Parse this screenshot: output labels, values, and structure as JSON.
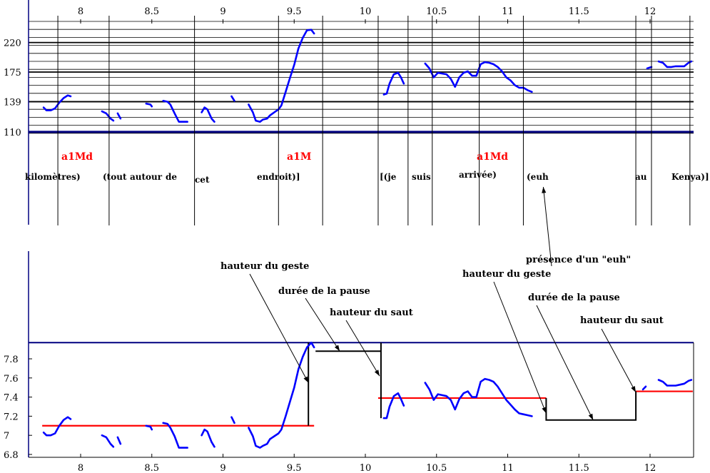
{
  "chart_data": [
    {
      "type": "line",
      "panel": "top",
      "x_ticks": [
        "8",
        "8.5",
        "9",
        "9.5",
        "10",
        "10.5",
        "11",
        "11.5",
        "12"
      ],
      "y_ticks": [
        "110",
        "139",
        "175",
        "220"
      ],
      "xlim": [
        7.73,
        12.3
      ],
      "ylim": [
        104,
        248
      ],
      "y_scale": "log",
      "grid": "horizontal",
      "series": [
        {
          "color": "#0000ff",
          "segments": [
            [
              [
                7.74,
                133
              ],
              [
                7.76,
                130
              ],
              [
                7.79,
                130
              ],
              [
                7.82,
                132
              ],
              [
                7.85,
                138
              ],
              [
                7.88,
                143
              ],
              [
                7.91,
                146
              ],
              [
                7.93,
                145
              ]
            ],
            [
              [
                8.15,
                129
              ],
              [
                8.18,
                127
              ],
              [
                8.21,
                122
              ],
              [
                8.23,
                120
              ]
            ],
            [
              [
                8.26,
                127
              ],
              [
                8.28,
                122
              ]
            ],
            [
              [
                8.46,
                137
              ],
              [
                8.49,
                136
              ],
              [
                8.5,
                134
              ]
            ],
            [
              [
                8.58,
                140
              ],
              [
                8.61,
                139
              ],
              [
                8.63,
                136
              ],
              [
                8.66,
                127
              ],
              [
                8.69,
                119
              ],
              [
                8.73,
                119
              ],
              [
                8.75,
                119
              ]
            ],
            [
              [
                8.85,
                128
              ],
              [
                8.87,
                133
              ],
              [
                8.89,
                131
              ],
              [
                8.92,
                122
              ],
              [
                8.94,
                119
              ]
            ],
            [
              [
                9.06,
                145
              ],
              [
                9.08,
                140
              ]
            ],
            [
              [
                9.18,
                136
              ],
              [
                9.21,
                128
              ],
              [
                9.23,
                120
              ],
              [
                9.26,
                119
              ],
              [
                9.28,
                121
              ],
              [
                9.31,
                122
              ],
              [
                9.33,
                125
              ],
              [
                9.36,
                128
              ],
              [
                9.39,
                131
              ],
              [
                9.41,
                135
              ],
              [
                9.44,
                150
              ],
              [
                9.47,
                167
              ],
              [
                9.5,
                185
              ],
              [
                9.53,
                210
              ],
              [
                9.56,
                228
              ],
              [
                9.59,
                242
              ],
              [
                9.62,
                243
              ],
              [
                9.64,
                236
              ]
            ],
            [
              [
                10.13,
                147
              ],
              [
                10.15,
                148
              ],
              [
                10.17,
                160
              ],
              [
                10.2,
                172
              ],
              [
                10.23,
                174
              ],
              [
                10.25,
                168
              ],
              [
                10.27,
                160
              ]
            ],
            [
              [
                10.42,
                187
              ],
              [
                10.45,
                180
              ],
              [
                10.48,
                168
              ],
              [
                10.51,
                174
              ],
              [
                10.54,
                173
              ],
              [
                10.57,
                172
              ],
              [
                10.6,
                166
              ],
              [
                10.63,
                156
              ],
              [
                10.66,
                168
              ],
              [
                10.69,
                174
              ],
              [
                10.72,
                176
              ],
              [
                10.75,
                170
              ],
              [
                10.78,
                170
              ],
              [
                10.81,
                186
              ],
              [
                10.84,
                189
              ],
              [
                10.87,
                188
              ],
              [
                10.9,
                186
              ],
              [
                10.93,
                182
              ],
              [
                10.96,
                176
              ],
              [
                10.99,
                168
              ],
              [
                11.02,
                164
              ],
              [
                11.05,
                158
              ],
              [
                11.08,
                155
              ],
              [
                11.11,
                155
              ],
              [
                11.14,
                152
              ],
              [
                11.17,
                150
              ]
            ],
            [
              [
                11.98,
                180
              ],
              [
                12.01,
                182
              ]
            ],
            [
              [
                12.06,
                190
              ],
              [
                12.09,
                188
              ],
              [
                12.12,
                182
              ],
              [
                12.15,
                182
              ],
              [
                12.18,
                183
              ],
              [
                12.21,
                183
              ],
              [
                12.24,
                183
              ],
              [
                12.27,
                188
              ],
              [
                12.29,
                190
              ]
            ]
          ]
        }
      ],
      "word_boundaries": [
        7.84,
        8.2,
        8.8,
        9.39,
        9.7,
        10.09,
        10.3,
        10.47,
        10.8,
        11.11,
        11.9,
        12.01,
        12.28
      ],
      "words": [
        "kilomètres)",
        "(tout",
        "autour",
        "de",
        "cet",
        "endroit)]",
        "[(je",
        "suis",
        "arrivée)",
        "(euh",
        "au",
        "Kenya)]"
      ],
      "markers": [
        "a1Md",
        "a1M",
        "a1Md"
      ]
    },
    {
      "type": "line",
      "panel": "bottom",
      "x_ticks": [
        "8",
        "8.5",
        "9",
        "9.5",
        "10",
        "10.5",
        "11",
        "11.5",
        "12"
      ],
      "y_ticks": [
        "6.8",
        "7",
        "7.2",
        "7.4",
        "7.6",
        "7.8"
      ],
      "xlim": [
        7.73,
        12.3
      ],
      "ylim": [
        6.77,
        8.0
      ],
      "grid": "none",
      "series": [
        {
          "color": "#0000ff",
          "segments": [
            [
              [
                7.74,
                7.03
              ],
              [
                7.76,
                7.0
              ],
              [
                7.79,
                7.0
              ],
              [
                7.82,
                7.02
              ],
              [
                7.85,
                7.1
              ],
              [
                7.88,
                7.16
              ],
              [
                7.91,
                7.19
              ],
              [
                7.93,
                7.17
              ]
            ],
            [
              [
                8.15,
                7.0
              ],
              [
                8.18,
                6.98
              ],
              [
                8.21,
                6.91
              ],
              [
                8.23,
                6.88
              ]
            ],
            [
              [
                8.26,
                6.98
              ],
              [
                8.28,
                6.91
              ]
            ],
            [
              [
                8.46,
                7.1
              ],
              [
                8.49,
                7.09
              ],
              [
                8.5,
                7.06
              ]
            ],
            [
              [
                8.58,
                7.13
              ],
              [
                8.61,
                7.12
              ],
              [
                8.63,
                7.08
              ],
              [
                8.66,
                6.99
              ],
              [
                8.69,
                6.87
              ],
              [
                8.73,
                6.87
              ],
              [
                8.75,
                6.87
              ]
            ],
            [
              [
                8.85,
                7.0
              ],
              [
                8.87,
                7.06
              ],
              [
                8.89,
                7.04
              ],
              [
                8.92,
                6.93
              ],
              [
                8.94,
                6.88
              ]
            ],
            [
              [
                9.06,
                7.19
              ],
              [
                9.08,
                7.13
              ]
            ],
            [
              [
                9.18,
                7.08
              ],
              [
                9.21,
                6.99
              ],
              [
                9.23,
                6.89
              ],
              [
                9.26,
                6.87
              ],
              [
                9.28,
                6.89
              ],
              [
                9.31,
                6.91
              ],
              [
                9.33,
                6.96
              ],
              [
                9.36,
                6.99
              ],
              [
                9.39,
                7.02
              ],
              [
                9.41,
                7.06
              ],
              [
                9.44,
                7.2
              ],
              [
                9.47,
                7.35
              ],
              [
                9.5,
                7.5
              ],
              [
                9.53,
                7.69
              ],
              [
                9.56,
                7.82
              ],
              [
                9.59,
                7.92
              ],
              [
                9.62,
                7.97
              ],
              [
                9.64,
                7.92
              ]
            ],
            [
              [
                10.13,
                7.18
              ],
              [
                10.15,
                7.18
              ],
              [
                10.17,
                7.3
              ],
              [
                10.2,
                7.41
              ],
              [
                10.23,
                7.44
              ],
              [
                10.25,
                7.38
              ],
              [
                10.27,
                7.31
              ]
            ],
            [
              [
                10.42,
                7.55
              ],
              [
                10.45,
                7.48
              ],
              [
                10.48,
                7.37
              ],
              [
                10.51,
                7.43
              ],
              [
                10.54,
                7.42
              ],
              [
                10.57,
                7.41
              ],
              [
                10.6,
                7.37
              ],
              [
                10.63,
                7.27
              ],
              [
                10.66,
                7.38
              ],
              [
                10.69,
                7.44
              ],
              [
                10.72,
                7.46
              ],
              [
                10.75,
                7.4
              ],
              [
                10.78,
                7.4
              ],
              [
                10.81,
                7.56
              ],
              [
                10.84,
                7.59
              ],
              [
                10.87,
                7.58
              ],
              [
                10.9,
                7.56
              ],
              [
                10.93,
                7.51
              ],
              [
                10.96,
                7.44
              ],
              [
                10.99,
                7.37
              ],
              [
                11.02,
                7.32
              ],
              [
                11.05,
                7.27
              ],
              [
                11.08,
                7.23
              ],
              [
                11.11,
                7.22
              ],
              [
                11.14,
                7.21
              ],
              [
                11.17,
                7.2
              ]
            ],
            [
              [
                11.95,
                7.48
              ],
              [
                11.97,
                7.51
              ]
            ],
            [
              [
                12.06,
                7.58
              ],
              [
                12.09,
                7.56
              ],
              [
                12.12,
                7.52
              ],
              [
                12.15,
                7.52
              ],
              [
                12.18,
                7.52
              ],
              [
                12.21,
                7.53
              ],
              [
                12.24,
                7.54
              ],
              [
                12.27,
                7.57
              ],
              [
                12.29,
                7.58
              ]
            ]
          ]
        }
      ],
      "levels": [
        {
          "color": "#ff0000",
          "x0": 7.73,
          "x1": 9.64,
          "y": 7.1
        },
        {
          "color": "#ff0000",
          "x0": 10.09,
          "x1": 11.27,
          "y": 7.39
        },
        {
          "color": "#ff0000",
          "x0": 11.9,
          "x1": 12.3,
          "y": 7.46
        }
      ],
      "steps": [
        {
          "color": "#000000",
          "points": [
            [
              9.6,
              7.1
            ],
            [
              9.6,
              7.97
            ]
          ]
        },
        {
          "color": "#000000",
          "points": [
            [
              9.65,
              7.88
            ],
            [
              10.11,
              7.88
            ]
          ]
        },
        {
          "color": "#000000",
          "points": [
            [
              10.11,
              7.97
            ],
            [
              10.11,
              7.18
            ]
          ]
        },
        {
          "color": "#000000",
          "points": [
            [
              11.27,
              7.39
            ],
            [
              11.27,
              7.16
            ],
            [
              11.9,
              7.16
            ],
            [
              11.9,
              7.46
            ]
          ]
        }
      ],
      "ceiling": {
        "color": "#000080",
        "y": 7.97
      },
      "annotations": [
        {
          "text": "hauteur du geste",
          "target": [
            9.6,
            7.55
          ]
        },
        {
          "text": "durée de la pause",
          "target": [
            9.82,
            7.88
          ]
        },
        {
          "text": "hauteur du saut",
          "target": [
            10.1,
            7.62
          ]
        },
        {
          "text": "hauteur du geste",
          "target": [
            11.27,
            7.23
          ]
        },
        {
          "text": "durée de la pause",
          "target": [
            11.6,
            7.16
          ]
        },
        {
          "text": "hauteur du saut",
          "target": [
            11.9,
            7.45
          ]
        },
        {
          "text": "présence d'un \"euh\"",
          "target": [
            11.25,
            "top"
          ]
        }
      ]
    }
  ],
  "colors": {
    "curve": "#0000ff",
    "level": "#ff0000",
    "frame": "#000080",
    "grid": "#000000"
  }
}
